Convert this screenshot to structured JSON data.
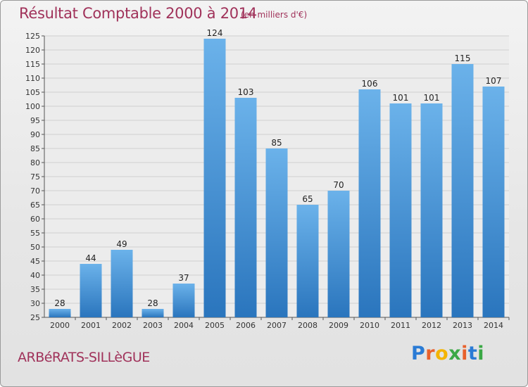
{
  "title": "Résultat Comptable 2000 à 2014",
  "subtitle": "(en milliers d'€)",
  "town": "ARBéRATS-SILLèGUE",
  "logo": {
    "letters": [
      "P",
      "r",
      "o",
      "x",
      "i",
      "t",
      "i"
    ],
    "colors": [
      "#2a7bd5",
      "#e8612c",
      "#f4b400",
      "#3aa845",
      "#e8612c",
      "#2a7bd5",
      "#3aa845"
    ]
  },
  "colors": {
    "bar": "#3d8fd6",
    "bar_light": "#6bb2ea",
    "bar_dark": "#2a75bd",
    "text": "#a0325a"
  },
  "chart_data": {
    "type": "bar",
    "categories": [
      "2000",
      "2001",
      "2002",
      "2003",
      "2004",
      "2005",
      "2006",
      "2007",
      "2008",
      "2009",
      "2010",
      "2011",
      "2012",
      "2013",
      "2014"
    ],
    "values": [
      28,
      44,
      49,
      28,
      37,
      124,
      103,
      85,
      65,
      70,
      106,
      101,
      101,
      115,
      107
    ],
    "ylim": [
      25,
      125
    ],
    "yticks": [
      25,
      30,
      35,
      40,
      45,
      50,
      55,
      60,
      65,
      70,
      75,
      80,
      85,
      90,
      95,
      100,
      105,
      110,
      115,
      120,
      125
    ],
    "grid": true,
    "legend": "none"
  }
}
